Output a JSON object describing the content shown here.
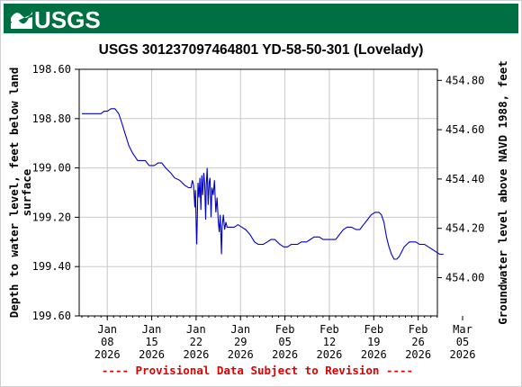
{
  "header": {
    "logo_text": "USGS",
    "logo_colors": {
      "banner": "#006f41",
      "text": "#ffffff"
    }
  },
  "chart_data": {
    "type": "line",
    "title": "USGS 301237097464801 YD-58-50-301 (Lovelady)",
    "ylabel_left": "Depth to water level, feet below land surface",
    "ylabel_left_lines": [
      "Depth to water level, feet below land",
      "surface"
    ],
    "ylabel_right": "Groundwater level above NAVD 1988, feet",
    "y_left_range": [
      198.6,
      199.6
    ],
    "y_left_inverted": true,
    "y_left_ticks": [
      "198.60",
      "198.80",
      "199.00",
      "199.20",
      "199.40",
      "199.60"
    ],
    "y_right_range": [
      454.8449,
      453.8449
    ],
    "y_right_ticks": [
      "454.80",
      "454.60",
      "454.40",
      "454.20",
      "454.00"
    ],
    "x_range_days": [
      0,
      57
    ],
    "x_ticks": [
      {
        "day": 4,
        "label": [
          "Jan",
          "08",
          "2026"
        ]
      },
      {
        "day": 11,
        "label": [
          "Jan",
          "15",
          "2026"
        ]
      },
      {
        "day": 18,
        "label": [
          "Jan",
          "22",
          "2026"
        ]
      },
      {
        "day": 25,
        "label": [
          "Jan",
          "29",
          "2026"
        ]
      },
      {
        "day": 32,
        "label": [
          "Feb",
          "05",
          "2026"
        ]
      },
      {
        "day": 39,
        "label": [
          "Feb",
          "12",
          "2026"
        ]
      },
      {
        "day": 46,
        "label": [
          "Feb",
          "19",
          "2026"
        ]
      },
      {
        "day": 53,
        "label": [
          "Feb",
          "26",
          "2026"
        ]
      },
      {
        "day": 60,
        "label": [
          "Mar",
          "05",
          "2026"
        ]
      }
    ],
    "grid": true,
    "line_color": "#0000cc",
    "series": [
      {
        "points": [
          [
            0.0,
            198.78
          ],
          [
            3.0,
            198.78
          ],
          [
            3.5,
            198.77
          ],
          [
            4.0,
            198.77
          ],
          [
            4.6,
            198.76
          ],
          [
            5.2,
            198.76
          ],
          [
            5.8,
            198.78
          ],
          [
            6.2,
            198.81
          ],
          [
            6.8,
            198.86
          ],
          [
            7.4,
            198.91
          ],
          [
            8.0,
            198.94
          ],
          [
            8.8,
            198.97
          ],
          [
            10.0,
            198.97
          ],
          [
            10.6,
            198.99
          ],
          [
            11.4,
            198.99
          ],
          [
            12.0,
            198.98
          ],
          [
            12.6,
            198.98
          ],
          [
            13.2,
            199.0
          ],
          [
            14.0,
            199.02
          ],
          [
            14.6,
            199.04
          ],
          [
            15.4,
            199.05
          ],
          [
            16.2,
            199.07
          ],
          [
            16.8,
            199.08
          ],
          [
            17.2,
            199.08
          ],
          [
            17.4,
            199.05
          ],
          [
            17.6,
            199.07
          ],
          [
            17.8,
            199.16
          ],
          [
            17.9,
            199.09
          ],
          [
            18.0,
            199.22
          ],
          [
            18.1,
            199.31
          ],
          [
            18.2,
            199.19
          ],
          [
            18.3,
            199.06
          ],
          [
            18.45,
            199.12
          ],
          [
            18.6,
            199.04
          ],
          [
            18.75,
            199.17
          ],
          [
            18.9,
            199.03
          ],
          [
            19.05,
            199.11
          ],
          [
            19.2,
            199.02
          ],
          [
            19.35,
            199.06
          ],
          [
            19.5,
            199.21
          ],
          [
            19.6,
            199.07
          ],
          [
            19.75,
            199.0
          ],
          [
            19.9,
            199.15
          ],
          [
            20.05,
            199.06
          ],
          [
            20.2,
            199.04
          ],
          [
            20.35,
            199.2
          ],
          [
            20.5,
            199.08
          ],
          [
            20.7,
            199.11
          ],
          [
            20.9,
            199.05
          ],
          [
            21.1,
            199.18
          ],
          [
            21.3,
            199.12
          ],
          [
            21.5,
            199.22
          ],
          [
            21.65,
            199.26
          ],
          [
            21.8,
            199.19
          ],
          [
            22.0,
            199.35
          ],
          [
            22.1,
            199.24
          ],
          [
            22.3,
            199.19
          ],
          [
            22.5,
            199.25
          ],
          [
            22.7,
            199.22
          ],
          [
            22.9,
            199.24
          ],
          [
            24.0,
            199.24
          ],
          [
            24.6,
            199.23
          ],
          [
            25.2,
            199.24
          ],
          [
            25.8,
            199.25
          ],
          [
            26.5,
            199.27
          ],
          [
            27.2,
            199.3
          ],
          [
            27.8,
            199.31
          ],
          [
            28.6,
            199.31
          ],
          [
            29.2,
            199.3
          ],
          [
            29.8,
            199.29
          ],
          [
            30.4,
            199.29
          ],
          [
            30.8,
            199.3
          ],
          [
            31.2,
            199.31
          ],
          [
            31.8,
            199.32
          ],
          [
            32.4,
            199.32
          ],
          [
            33.0,
            199.31
          ],
          [
            34.0,
            199.31
          ],
          [
            34.6,
            199.3
          ],
          [
            35.4,
            199.3
          ],
          [
            36.0,
            199.29
          ],
          [
            36.6,
            199.28
          ],
          [
            37.4,
            199.28
          ],
          [
            38.0,
            199.29
          ],
          [
            40.0,
            199.29
          ],
          [
            40.6,
            199.27
          ],
          [
            41.2,
            199.25
          ],
          [
            41.8,
            199.24
          ],
          [
            42.5,
            199.24
          ],
          [
            43.2,
            199.25
          ],
          [
            43.8,
            199.25
          ],
          [
            44.4,
            199.23
          ],
          [
            45.0,
            199.21
          ],
          [
            45.6,
            199.19
          ],
          [
            46.2,
            199.18
          ],
          [
            46.8,
            199.18
          ],
          [
            47.2,
            199.19
          ],
          [
            47.6,
            199.22
          ],
          [
            48.0,
            199.28
          ],
          [
            48.4,
            199.32
          ],
          [
            48.8,
            199.35
          ],
          [
            49.2,
            199.37
          ],
          [
            49.6,
            199.37
          ],
          [
            50.0,
            199.36
          ],
          [
            50.4,
            199.34
          ],
          [
            50.8,
            199.32
          ],
          [
            51.2,
            199.31
          ],
          [
            51.6,
            199.3
          ],
          [
            52.6,
            199.3
          ],
          [
            53.2,
            199.31
          ],
          [
            54.0,
            199.31
          ],
          [
            54.6,
            199.32
          ],
          [
            55.2,
            199.33
          ],
          [
            55.8,
            199.34
          ],
          [
            56.4,
            199.35
          ],
          [
            57.0,
            199.35
          ]
        ]
      }
    ],
    "footnote": "---- Provisional Data Subject to Revision ----"
  }
}
